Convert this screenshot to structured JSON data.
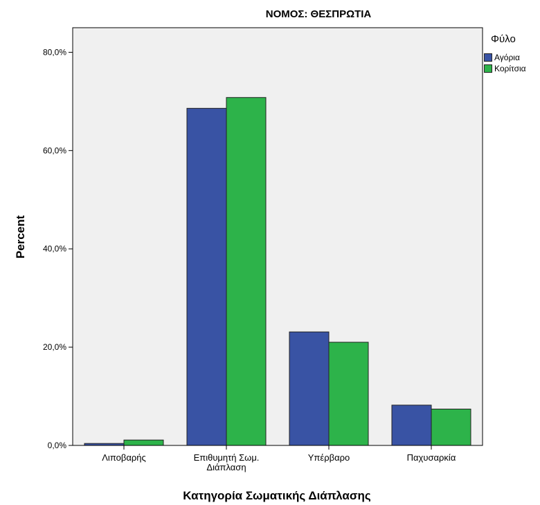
{
  "chart_data": {
    "type": "bar",
    "title": "ΝΟΜΟΣ: ΘΕΣΠΡΩΤΙΑ",
    "xlabel": "Κατηγορία Σωματικής Διάπλασης",
    "ylabel": "Percent",
    "categories": [
      [
        "Λιποβαρής"
      ],
      [
        "Επιθυμητή Σωμ.",
        "Διάπλαση"
      ],
      [
        "Υπέρβαρο"
      ],
      [
        "Παχυσαρκία"
      ]
    ],
    "series": [
      {
        "name": "Αγόρια",
        "color": "#3953a4",
        "values": [
          0.4,
          68.6,
          23.1,
          8.2
        ]
      },
      {
        "name": "Κορίτσια",
        "color": "#2db34a",
        "values": [
          1.1,
          70.8,
          21.0,
          7.4
        ]
      }
    ],
    "ylim": [
      0,
      85
    ],
    "yticks": [
      0,
      20,
      40,
      60,
      80
    ],
    "ytick_labels": [
      "0,0%",
      "20,0%",
      "40,0%",
      "60,0%",
      "80,0%"
    ],
    "legend_title": "Φύλο",
    "legend_position": "top-right",
    "grid": false,
    "plot_background": "#f0f0f0"
  }
}
